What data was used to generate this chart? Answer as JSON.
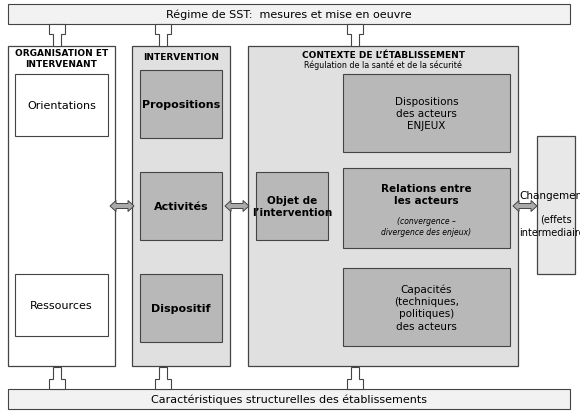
{
  "top_banner": "Régime de SST:  mesures et mise en oeuvre",
  "bottom_banner": "Caractéristiques structurelles des établissements",
  "col1_title": "ORGANISATION ET\nINTERVENANT",
  "col2_title": "INTERVENTION",
  "col3_title": "CONTEXTE DE L’ÉTABLISSEMENT",
  "col3_subtitle": "Régulation de la santé et de la sécurité",
  "box_orientations": "Orientations",
  "box_ressources": "Ressources",
  "box_propositions": "Propositions",
  "box_activites": "Activités",
  "box_dispositif": "Dispositif",
  "box_objet": "Objet de\nl’intervention",
  "box_dispositions": "Dispositions\ndes acteurs\nENJEUX",
  "box_relations": "Relations entre\nles acteurs\n(convergence –\ndivergence des enjeux)",
  "box_capacites": "Capacités\n(techniques,\npolitiques)\ndes acteurs",
  "box_changements": "Changements\n\n(effets\nintermediaires)",
  "color_white": "#ffffff",
  "color_banner_bg": "#f2f2f2",
  "color_col1_bg": "#ffffff",
  "color_col2_bg": "#e0e0e0",
  "color_col3_bg": "#e0e0e0",
  "color_inner_gray": "#b8b8b8",
  "color_changements_bg": "#e8e8e8",
  "color_border": "#444444",
  "color_border_light": "#888888"
}
